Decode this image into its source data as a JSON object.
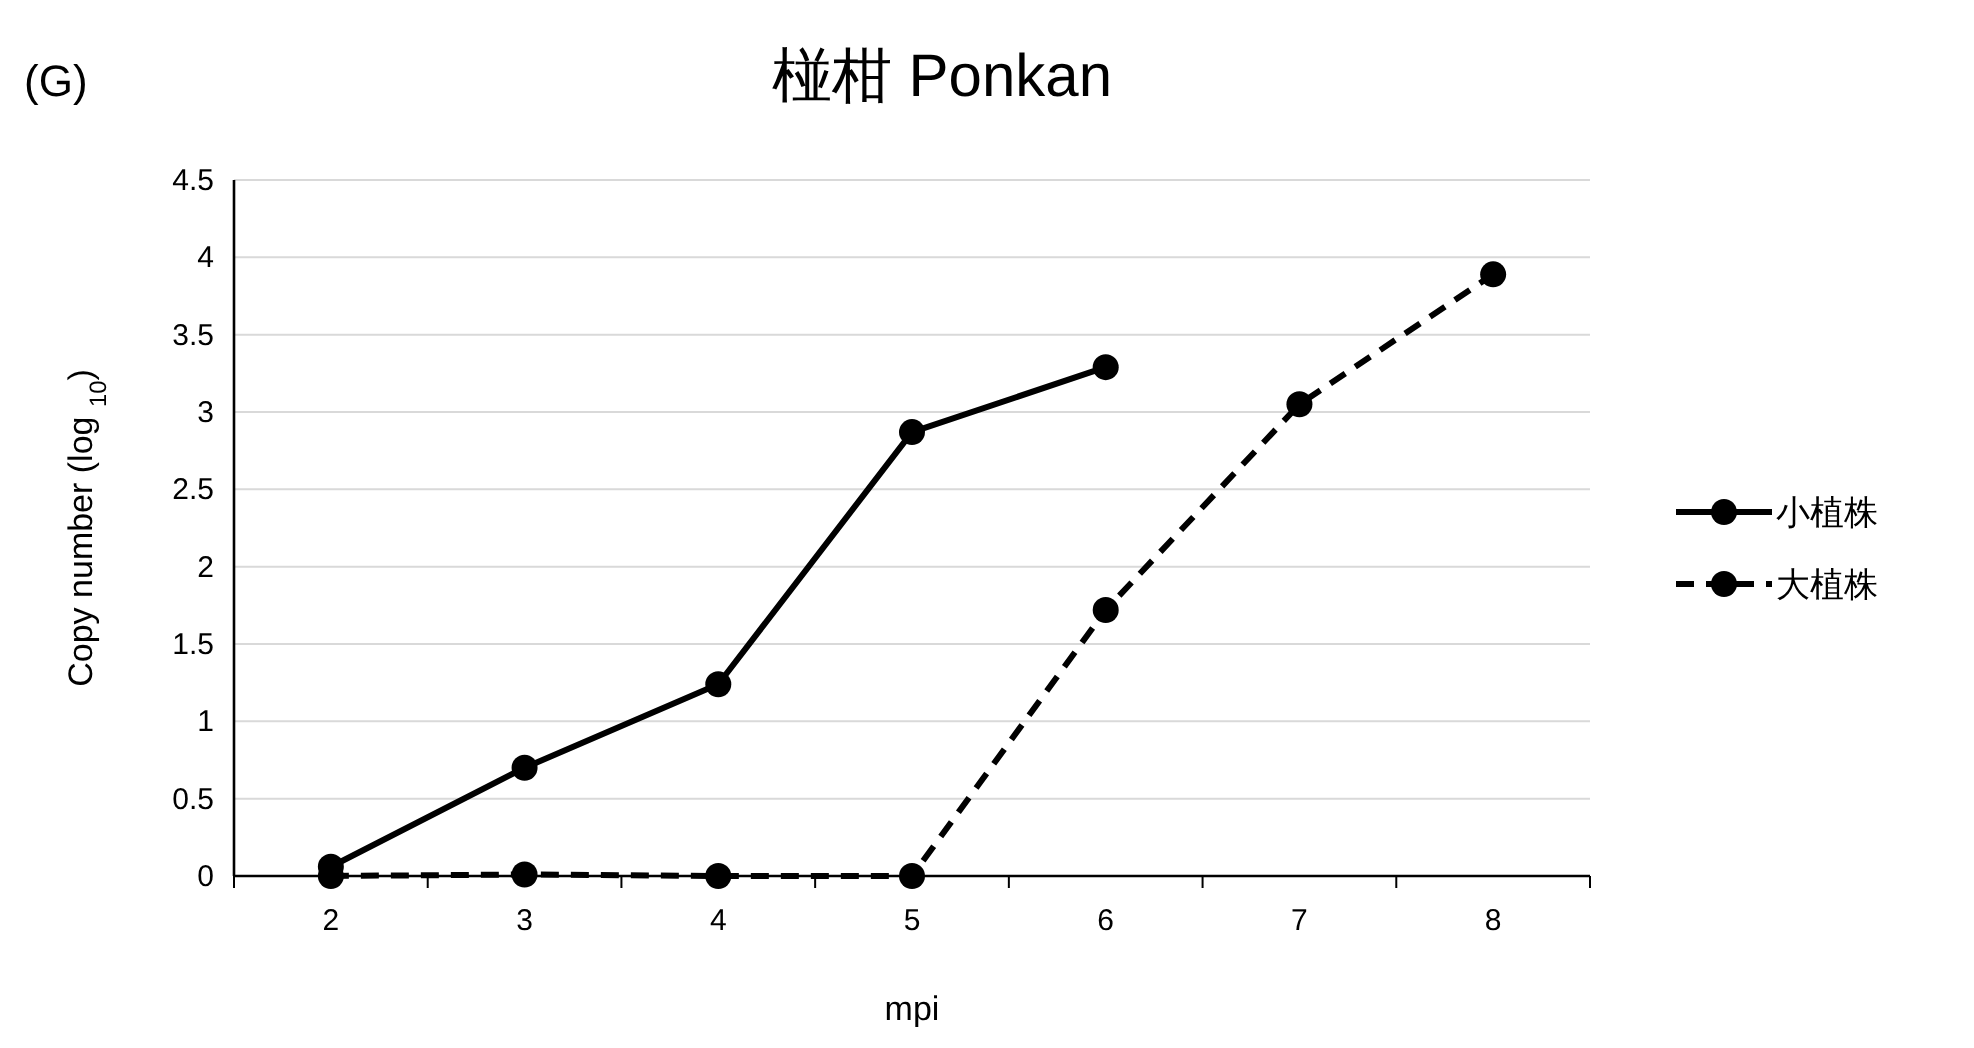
{
  "chart_data": {
    "type": "line",
    "title": "椪柑 Ponkan",
    "annotations": [
      "(G)"
    ],
    "xlabel": "mpi",
    "ylabel": "Copy number (log $_{10}$)",
    "categories": [
      "2",
      "3",
      "4",
      "5",
      "6",
      "7",
      "8"
    ],
    "series": [
      {
        "name": "小植株",
        "color": "#000000",
        "line_style": "solid",
        "values": [
          0.06,
          0.7,
          1.24,
          2.87,
          3.29,
          null,
          null
        ]
      },
      {
        "name": "大植株",
        "color": "#000000",
        "line_style": "dashed",
        "values": [
          0,
          0.01,
          0,
          0,
          1.72,
          3.05,
          3.89
        ]
      }
    ],
    "marker": "circle",
    "ylim": [
      0,
      4.5
    ],
    "yticks": [
      0,
      0.5,
      1,
      1.5,
      2,
      2.5,
      3,
      3.5,
      4,
      4.5
    ],
    "grid": "y",
    "legend": "right"
  }
}
